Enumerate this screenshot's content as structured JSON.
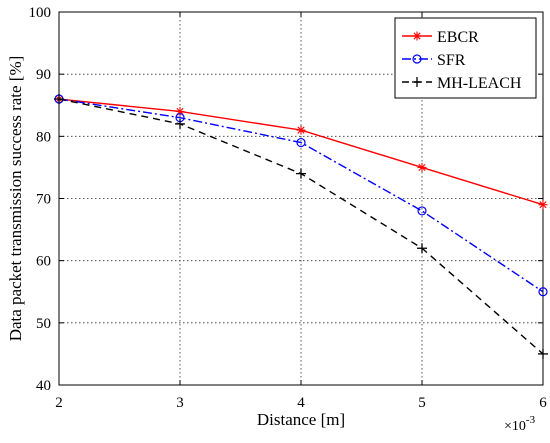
{
  "chart_data": {
    "type": "line",
    "xlabel": "Distance [m]",
    "ylabel": "Data packet transmission success rate [%]",
    "x_multiplier_label": "×10",
    "x_multiplier_exponent": "-3",
    "xlim": [
      2,
      6
    ],
    "ylim": [
      40,
      100
    ],
    "x_ticks": [
      2,
      3,
      4,
      5,
      6
    ],
    "y_ticks": [
      40,
      50,
      60,
      70,
      80,
      90,
      100
    ],
    "grid": true,
    "legend_position": "top-right",
    "x": [
      2,
      3,
      4,
      5,
      6
    ],
    "series": [
      {
        "name": "EBCR",
        "values": [
          86,
          84,
          81,
          75,
          69
        ],
        "color": "#ff0000",
        "line_style": "solid",
        "marker": "asterisk"
      },
      {
        "name": "SFR",
        "values": [
          86,
          83,
          79,
          68,
          55
        ],
        "color": "#0000ff",
        "line_style": "dash-dot",
        "marker": "circle"
      },
      {
        "name": "MH-LEACH",
        "values": [
          86,
          82,
          74,
          62,
          45
        ],
        "color": "#000000",
        "line_style": "dashed",
        "marker": "plus"
      }
    ]
  }
}
